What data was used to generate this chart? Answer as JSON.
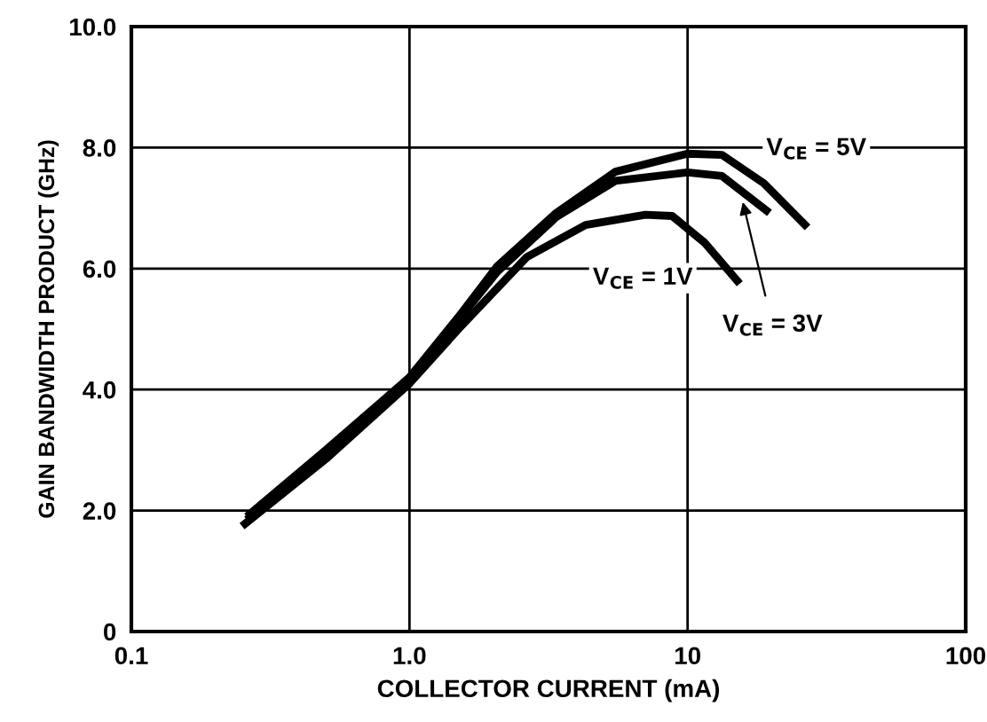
{
  "chart_data": {
    "type": "line",
    "xlabel": "COLLECTOR CURRENT (mA)",
    "ylabel": "GAIN BANDWIDTH PRODUCT (GHz)",
    "log": "x",
    "grid": true,
    "marker": "none",
    "line_style": "solid",
    "xlim": [
      0.1,
      100
    ],
    "xticks": [
      0.1,
      {
        "value": 1,
        "label": "1.0"
      },
      10,
      100
    ],
    "ylim": [
      0,
      10
    ],
    "yticks": [
      0,
      {
        "value": 2,
        "label": "2.0"
      },
      {
        "value": 4,
        "label": "4.0"
      },
      {
        "value": 6,
        "label": "6.0"
      },
      {
        "value": 8,
        "label": "8.0"
      },
      {
        "value": 10,
        "label": "10.0"
      }
    ],
    "series": [
      {
        "color": "#000000",
        "x": [
          0.26,
          0.5,
          1.0,
          1.5,
          2.07,
          3.37,
          5.5,
          10,
          13.3,
          18.8,
          27
        ],
        "values": [
          1.9,
          3.0,
          4.2,
          5.2,
          6.04,
          6.92,
          7.6,
          7.9,
          7.88,
          7.41,
          6.68
        ]
      },
      {
        "color": "#000000",
        "x": [
          0.26,
          0.5,
          1.0,
          1.5,
          2.07,
          3.37,
          5.5,
          10,
          13.3,
          19.7
        ],
        "values": [
          1.85,
          2.95,
          4.2,
          5.15,
          5.95,
          6.85,
          7.45,
          7.59,
          7.53,
          6.92
        ]
      },
      {
        "color": "#000000",
        "x": [
          0.25,
          0.5,
          1.0,
          1.5,
          2.64,
          4.3,
          7.05,
          8.8,
          11.5,
          15.4
        ],
        "values": [
          1.74,
          2.85,
          4.1,
          5.0,
          6.19,
          6.72,
          6.89,
          6.87,
          6.43,
          5.75
        ]
      }
    ],
    "annotations": [
      "V$_{CE}$ = 5V",
      "V$_{CE}$ = 1V",
      {
        "text": "V$_{CE}$ = 3V",
        "x": 15.8,
        "y": 7.1
      }
    ]
  }
}
